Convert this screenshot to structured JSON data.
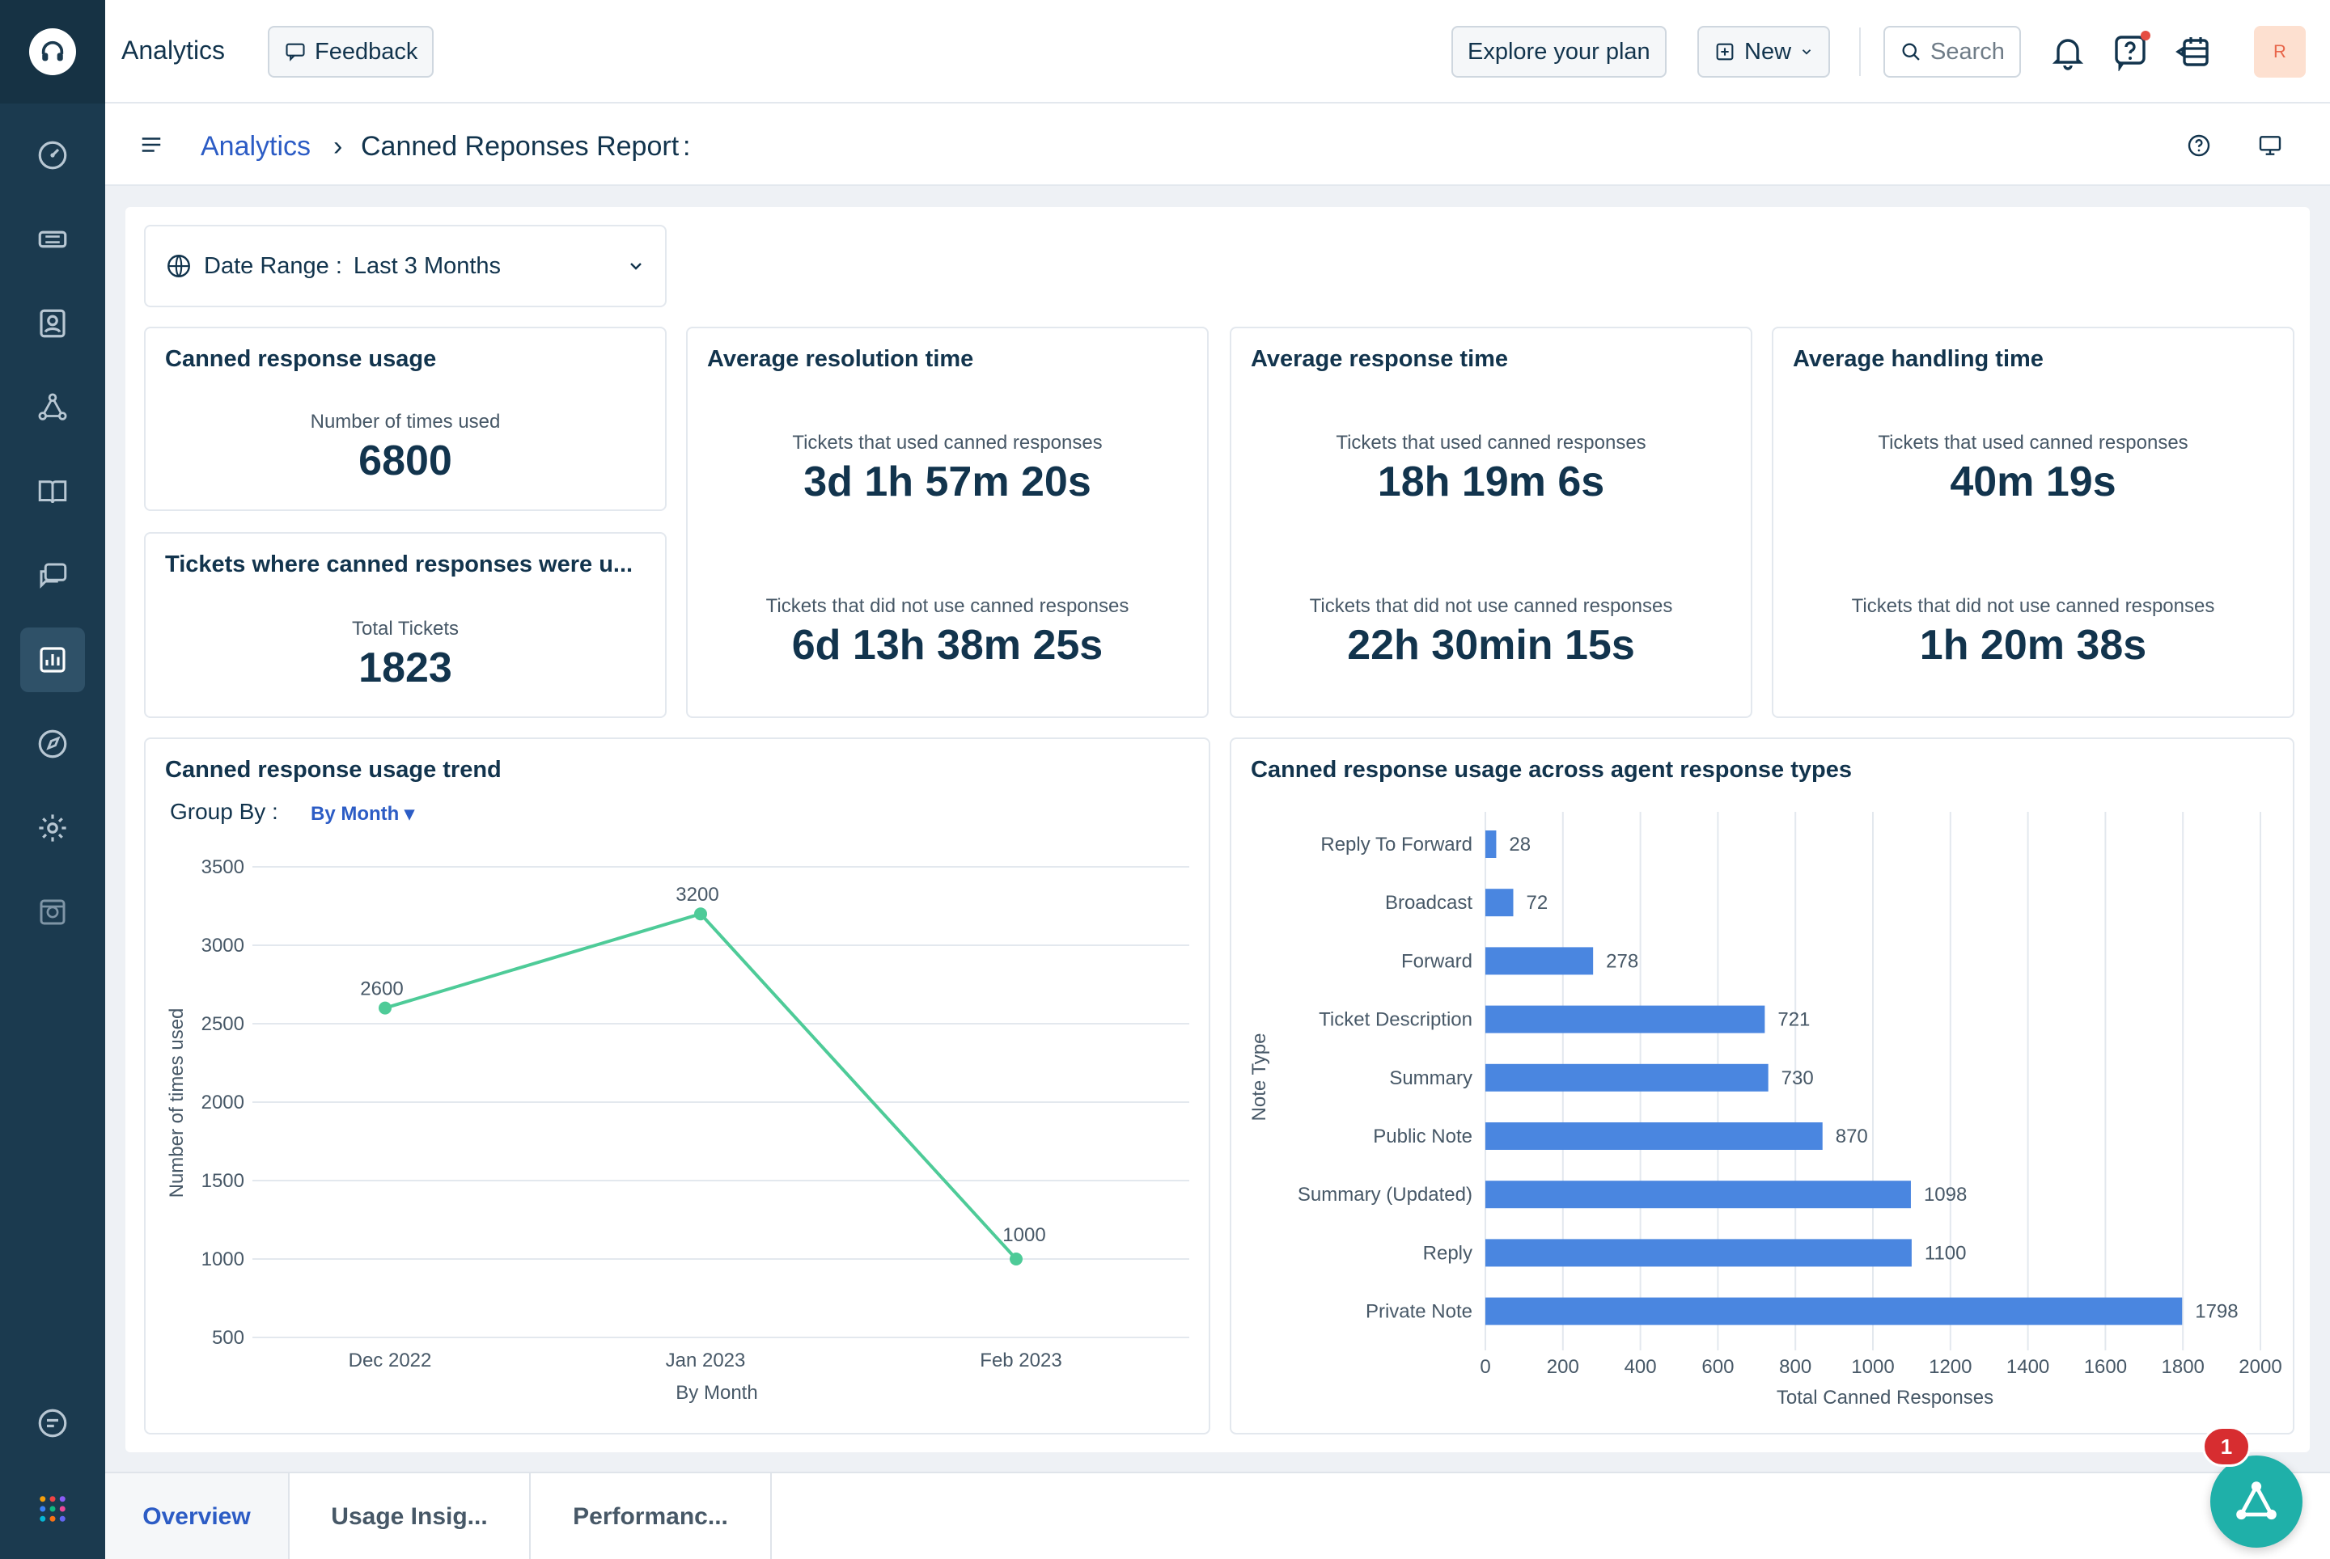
{
  "topbar": {
    "title": "Analytics",
    "feedback_label": "Feedback",
    "explore_label": "Explore your plan",
    "new_label": "New",
    "search_placeholder": "Search",
    "avatar_initial": "R"
  },
  "breadcrumb": {
    "root": "Analytics",
    "separator": "›",
    "current": "Canned Reponses Report",
    "tail": ":"
  },
  "filters": {
    "date_range_label": "Date Range :",
    "date_range_value": "Last 3 Months"
  },
  "cards": {
    "usage": {
      "title": "Canned response usage",
      "label": "Number of times used",
      "value": "6800"
    },
    "tickets": {
      "title": "Tickets where canned responses were u...",
      "label": "Total Tickets",
      "value": "1823"
    },
    "resolution": {
      "title": "Average resolution time",
      "used_label": "Tickets that used canned responses",
      "used_value": "3d 1h 57m 20s",
      "notused_label": "Tickets that did not use canned responses",
      "notused_value": "6d 13h 38m 25s"
    },
    "response": {
      "title": "Average response time",
      "used_label": "Tickets that used canned responses",
      "used_value": "18h 19m 6s",
      "notused_label": "Tickets that did not use canned responses",
      "notused_value": "22h 30min 15s"
    },
    "handling": {
      "title": "Average handling time",
      "used_label": "Tickets that used canned responses",
      "used_value": "40m 19s",
      "notused_label": "Tickets that did not use canned responses",
      "notused_value": "1h 20m 38s"
    },
    "trend": {
      "title": "Canned response usage trend",
      "group_by_label": "Group By :",
      "group_by_value": "By Month ▾"
    },
    "types": {
      "title": "Canned response usage across agent response types"
    }
  },
  "chart_data": [
    {
      "type": "line",
      "title": "Canned response usage trend",
      "x": [
        "Dec 2022",
        "Jan 2023",
        "Feb 2023"
      ],
      "values": [
        2600,
        3200,
        1000
      ],
      "xlabel": "By Month",
      "ylabel": "Number of times used",
      "ylim": [
        500,
        3500
      ],
      "yticks": [
        3500,
        3000,
        2500,
        2000,
        1500,
        1000,
        500
      ],
      "color": "#4ecb98"
    },
    {
      "type": "bar",
      "orientation": "horizontal",
      "title": "Canned response usage across agent response types",
      "categories": [
        "Reply To Forward",
        "Broadcast",
        "Forward",
        "Ticket Description",
        "Summary",
        "Public Note",
        "Summary (Updated)",
        "Reply",
        "Private Note"
      ],
      "values": [
        28,
        72,
        278,
        721,
        730,
        870,
        1098,
        1100,
        1798
      ],
      "xlabel": "Total Canned Responses",
      "ylabel": "Note Type",
      "xlim": [
        0,
        2000
      ],
      "xticks": [
        0,
        200,
        400,
        600,
        800,
        1000,
        1200,
        1400,
        1600,
        1800,
        2000
      ],
      "color": "#4a86e0"
    }
  ],
  "tabs": [
    "Overview",
    "Usage Insig...",
    "Performanc..."
  ],
  "fab": {
    "badge": "1"
  }
}
